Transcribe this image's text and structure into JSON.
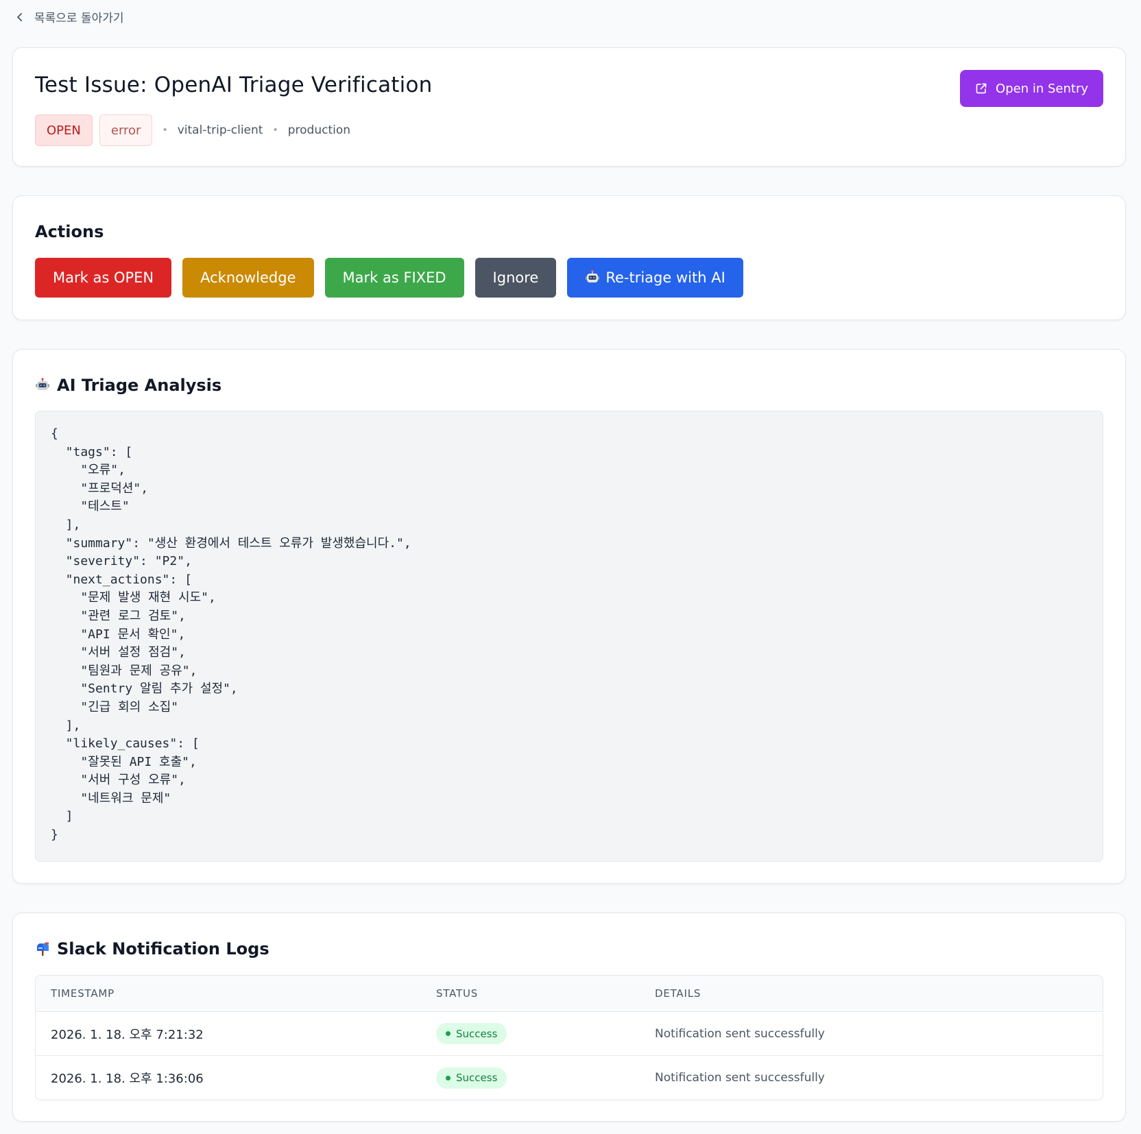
{
  "nav": {
    "back_label": "목록으로 돌아가기"
  },
  "issue": {
    "title": "Test Issue: OpenAI Triage Verification",
    "status_badge": "OPEN",
    "level_badge": "error",
    "project": "vital-trip-client",
    "environment": "production",
    "open_in_sentry_label": "Open in Sentry"
  },
  "actions": {
    "title": "Actions",
    "buttons": [
      {
        "label": "Mark as OPEN",
        "color": "#dc2626"
      },
      {
        "label": "Acknowledge",
        "color": "#ca8a04"
      },
      {
        "label": "Mark as FIXED",
        "color": "#3da84a"
      },
      {
        "label": "Ignore",
        "color": "#4b5563"
      },
      {
        "label": "Re-triage with AI",
        "color": "#2563eb",
        "icon": "robot-icon"
      }
    ]
  },
  "triage": {
    "title": "AI Triage Analysis",
    "icon": "robot-icon",
    "json_text": "{\n  \"tags\": [\n    \"오류\",\n    \"프로덕션\",\n    \"테스트\"\n  ],\n  \"summary\": \"생산 환경에서 테스트 오류가 발생했습니다.\",\n  \"severity\": \"P2\",\n  \"next_actions\": [\n    \"문제 발생 재현 시도\",\n    \"관련 로그 검토\",\n    \"API 문서 확인\",\n    \"서버 설정 점검\",\n    \"팀원과 문제 공유\",\n    \"Sentry 알림 추가 설정\",\n    \"긴급 회의 소집\"\n  ],\n  \"likely_causes\": [\n    \"잘못된 API 호출\",\n    \"서버 구성 오류\",\n    \"네트워크 문제\"\n  ]\n}"
  },
  "logs": {
    "title": "Slack Notification Logs",
    "icon": "mailbox-icon",
    "columns": [
      "TIMESTAMP",
      "STATUS",
      "DETAILS"
    ],
    "rows": [
      {
        "timestamp": "2026. 1. 18. 오후 7:21:32",
        "status": "Success",
        "details": "Notification sent successfully"
      },
      {
        "timestamp": "2026. 1. 18. 오후 1:36:06",
        "status": "Success",
        "details": "Notification sent successfully"
      }
    ]
  },
  "colors": {
    "accent_purple": "#9333ea",
    "success_green": "#16a34a",
    "danger_red": "#dc2626"
  }
}
